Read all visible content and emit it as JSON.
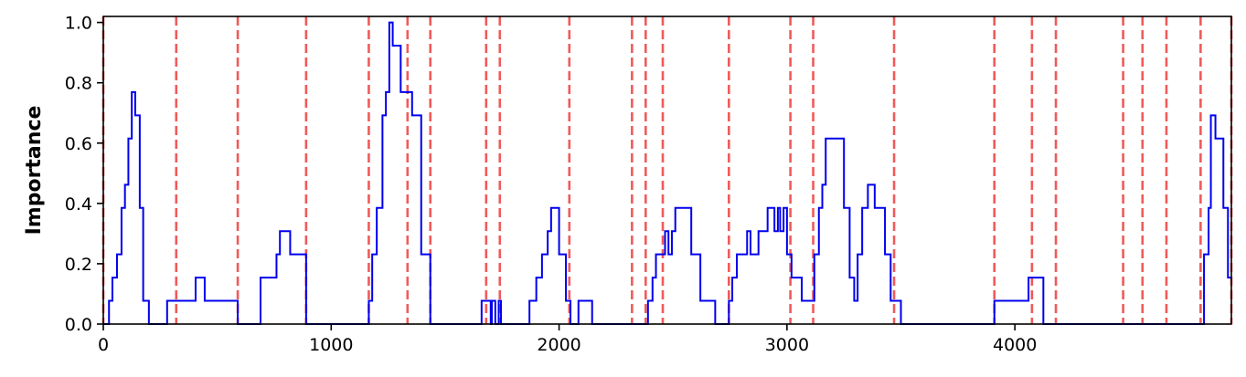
{
  "chart_data": {
    "type": "line",
    "title": "",
    "xlabel": "",
    "ylabel": "Importance",
    "xlim": [
      0,
      4950
    ],
    "ylim": [
      0,
      1.02
    ],
    "xticks": [
      0,
      1000,
      2000,
      3000,
      4000
    ],
    "yticks": [
      0.0,
      0.2,
      0.4,
      0.6,
      0.8,
      1.0
    ],
    "xtick_labels": [
      "0",
      "1000",
      "2000",
      "3000",
      "4000"
    ],
    "ytick_labels": [
      "0.0",
      "0.2",
      "0.4",
      "0.6",
      "0.8",
      "1.0"
    ],
    "grid": false,
    "legend": "none",
    "line_color": "#0000ee",
    "vline_color": "#f05a5a",
    "vlines": [
      0,
      320,
      590,
      890,
      1165,
      1335,
      1435,
      1680,
      1740,
      2045,
      2320,
      2380,
      2455,
      2745,
      3015,
      3115,
      3470,
      3910,
      4075,
      4180,
      4475,
      4560,
      4665,
      4815,
      4950
    ],
    "series": [
      {
        "name": "",
        "step": true,
        "x": [
          0,
          25,
          40,
          60,
          80,
          95,
          110,
          125,
          140,
          160,
          175,
          200,
          225,
          280,
          405,
          445,
          590,
          690,
          760,
          775,
          800,
          820,
          890,
          1165,
          1180,
          1200,
          1225,
          1240,
          1255,
          1270,
          1305,
          1335,
          1355,
          1375,
          1395,
          1435,
          1660,
          1700,
          1705,
          1720,
          1735,
          1745,
          1870,
          1900,
          1925,
          1950,
          1965,
          1980,
          2000,
          2030,
          2050,
          2075,
          2085,
          2145,
          2170,
          2390,
          2410,
          2425,
          2450,
          2465,
          2480,
          2495,
          2510,
          2525,
          2580,
          2620,
          2640,
          2660,
          2685,
          2745,
          2760,
          2780,
          2800,
          2825,
          2840,
          2855,
          2875,
          2915,
          2945,
          2960,
          2970,
          2985,
          3000,
          3020,
          3065,
          3120,
          3140,
          3155,
          3170,
          3190,
          3250,
          3275,
          3295,
          3310,
          3330,
          3355,
          3365,
          3385,
          3430,
          3455,
          3475,
          3500,
          3515,
          3550,
          3910,
          4060,
          4125,
          4185,
          4810,
          4830,
          4850,
          4860,
          4880,
          4895,
          4915,
          4935,
          4950
        ],
        "y": [
          0,
          0.077,
          0.154,
          0.231,
          0.385,
          0.462,
          0.615,
          0.769,
          0.692,
          0.385,
          0.077,
          0.0,
          0.0,
          0.077,
          0.154,
          0.077,
          0.0,
          0.154,
          0.231,
          0.308,
          0.308,
          0.231,
          0.0,
          0.077,
          0.231,
          0.385,
          0.692,
          0.769,
          1.0,
          0.923,
          0.769,
          0.769,
          0.692,
          0.692,
          0.231,
          0.0,
          0.077,
          0.0,
          0.077,
          0.0,
          0.077,
          0.0,
          0.077,
          0.154,
          0.231,
          0.308,
          0.385,
          0.385,
          0.231,
          0.077,
          0.0,
          0.0,
          0.077,
          0.0,
          0.0,
          0.077,
          0.154,
          0.231,
          0.231,
          0.308,
          0.231,
          0.308,
          0.385,
          0.385,
          0.231,
          0.077,
          0.077,
          0.077,
          0.0,
          0.077,
          0.154,
          0.231,
          0.231,
          0.308,
          0.231,
          0.231,
          0.308,
          0.385,
          0.308,
          0.385,
          0.308,
          0.385,
          0.231,
          0.154,
          0.077,
          0.231,
          0.385,
          0.462,
          0.615,
          0.615,
          0.385,
          0.154,
          0.077,
          0.231,
          0.385,
          0.462,
          0.462,
          0.385,
          0.231,
          0.077,
          0.077,
          0.0,
          0.0,
          0.0,
          0.077,
          0.154,
          0.0,
          0.0,
          0.0,
          0.231,
          0.385,
          0.692,
          0.615,
          0.615,
          0.385,
          0.154,
          0.154
        ]
      }
    ]
  }
}
